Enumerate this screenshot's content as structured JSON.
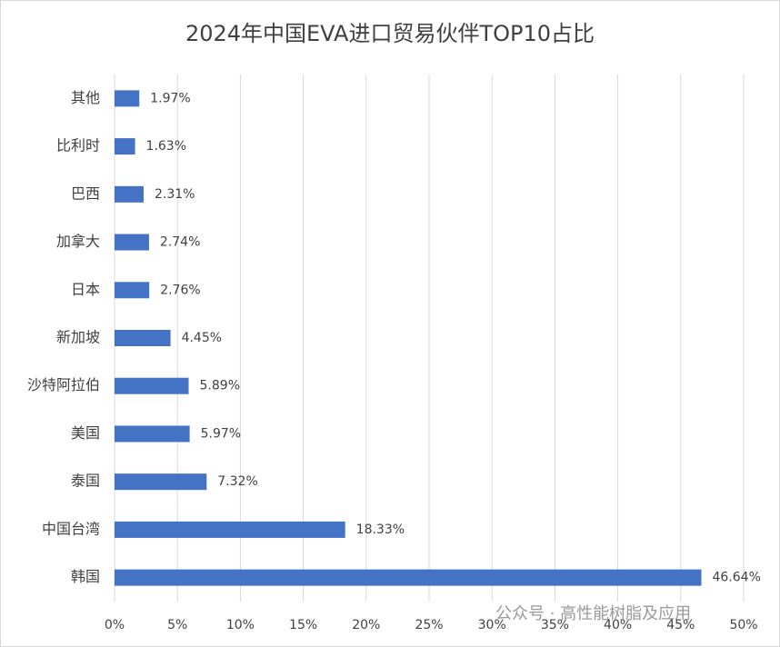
{
  "chart_data": {
    "type": "hbar",
    "title": "2024年中国EVA进口贸易伙伴TOP10占比",
    "categories": [
      "其他",
      "比利时",
      "巴西",
      "加拿大",
      "日本",
      "新加坡",
      "沙特阿拉伯",
      "美国",
      "泰国",
      "中国台湾",
      "韩国"
    ],
    "values": [
      1.97,
      1.63,
      2.31,
      2.74,
      2.76,
      4.45,
      5.89,
      5.97,
      7.32,
      18.33,
      46.64
    ],
    "value_labels": [
      "1.97%",
      "1.63%",
      "2.31%",
      "2.74%",
      "2.76%",
      "4.45%",
      "5.89%",
      "5.97%",
      "7.32%",
      "18.33%",
      "46.64%"
    ],
    "color": "#4472c4",
    "xlim": [
      0,
      50
    ],
    "xticks": [
      {
        "value": 0,
        "label": "0%"
      },
      {
        "value": 5,
        "label": "5%"
      },
      {
        "value": 10,
        "label": "10%"
      },
      {
        "value": 15,
        "label": "15%"
      },
      {
        "value": 20,
        "label": "20%"
      },
      {
        "value": 25,
        "label": "25%"
      },
      {
        "value": 30,
        "label": "30%"
      },
      {
        "value": 35,
        "label": "35%"
      },
      {
        "value": 40,
        "label": "40%"
      },
      {
        "value": 45,
        "label": "45%"
      },
      {
        "value": 50,
        "label": "50%"
      }
    ],
    "grid": true,
    "annotation": "公众号 · 高性能树脂及应用"
  }
}
